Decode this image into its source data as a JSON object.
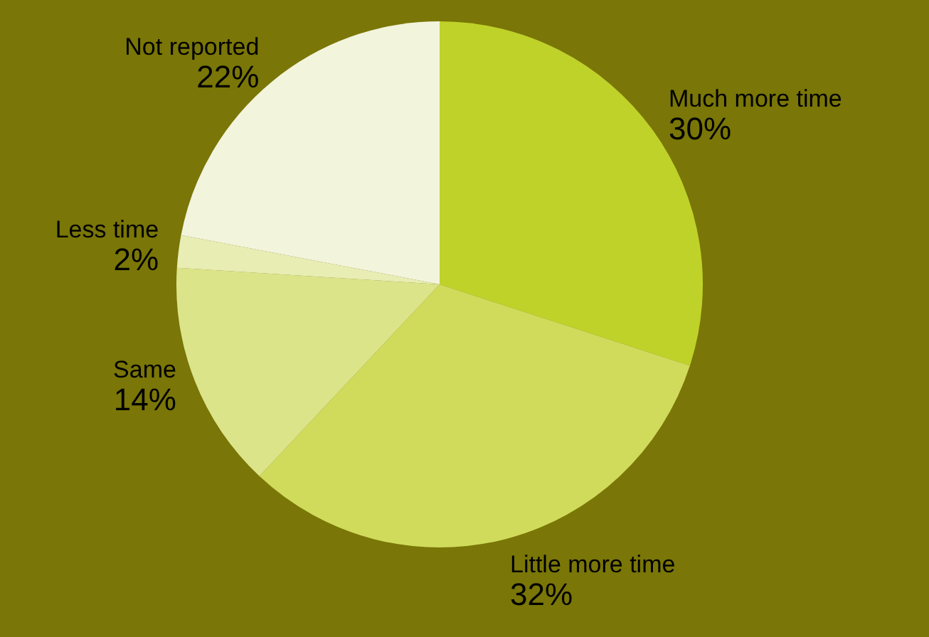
{
  "chart_data": {
    "type": "pie",
    "categories": [
      "Much more time",
      "Little more time",
      "Same",
      "Less time",
      "Not reported"
    ],
    "values": [
      30,
      32,
      14,
      2,
      22
    ],
    "value_labels": [
      "30%",
      "32%",
      "14%",
      "2%",
      "22%"
    ],
    "colors": [
      "#bfd22a",
      "#d0db5c",
      "#dce48a",
      "#e8edb4",
      "#f3f4dc"
    ],
    "legend": false
  }
}
